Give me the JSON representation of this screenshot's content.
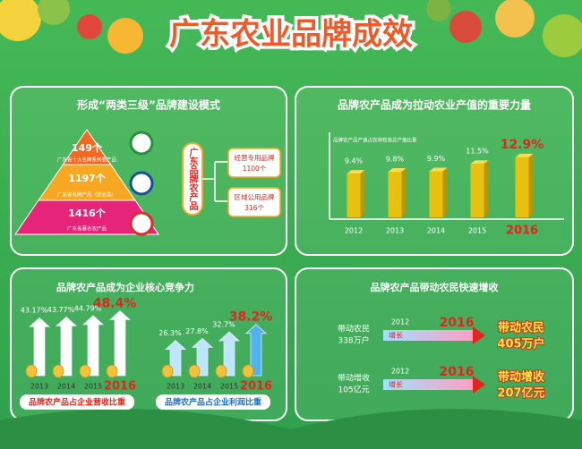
{
  "title": "广东农业品牌成效",
  "panel1": {
    "title": "形成“两类三级”品牌建设模式",
    "pyramid": [
      {
        "value": "149个",
        "label": "广东省十大名牌系列农产品"
      },
      {
        "value": "1197个",
        "label": "广东省名牌产品（农业类）"
      },
      {
        "value": "1416个",
        "label": "广东省著名农产品"
      }
    ],
    "center_label": "广东品牌农产品",
    "branches": [
      {
        "name": "经营专用品牌",
        "value": "1100个"
      },
      {
        "name": "区域公用品牌",
        "value": "316个"
      }
    ]
  },
  "panel3": {
    "title": "品牌农产品成为企业核心竞争力"
  },
  "panel4": {
    "title": "品牌农产品带动农民快速增收",
    "rows": [
      {
        "label": "带动农民",
        "value": "338万户",
        "from": "2012",
        "verb": "增长",
        "to": "2016",
        "result_label": "带动农民",
        "result_value": "405万户"
      },
      {
        "label": "带动增收",
        "value": "105亿元",
        "from": "2012",
        "verb": "增长",
        "to": "2016",
        "result_label": "带动增收",
        "result_value": "207亿元"
      }
    ]
  },
  "chart_data": [
    {
      "type": "bar",
      "title": "品牌农产品成为拉动农业产值的重要力量",
      "subtitle": "品牌农产品产值占农林牧渔总产值比重",
      "categories": [
        "2012",
        "2013",
        "2014",
        "2015",
        "2016"
      ],
      "values": [
        9.4,
        9.8,
        9.9,
        11.5,
        12.9
      ],
      "value_labels": [
        "9.4%",
        "9.8%",
        "9.9%",
        "11.5%",
        "12.9%"
      ],
      "color": "#e8c20f",
      "highlight_color": "#e0261d"
    },
    {
      "type": "arrow",
      "caption": "品牌农产品占企业营收比重",
      "categories": [
        "2013",
        "2014",
        "2015",
        "2016"
      ],
      "values": [
        43.17,
        43.77,
        44.79,
        48.4
      ],
      "value_labels": [
        "43.17%",
        "43.77%",
        "44.79%",
        "48.4%"
      ],
      "color": "#ffffff",
      "highlight_color": "#e0261d",
      "caption_color": "#e0261d"
    },
    {
      "type": "arrow",
      "caption": "品牌农产品占企业利润比重",
      "categories": [
        "2013",
        "2014",
        "2015",
        "2016"
      ],
      "values": [
        26.3,
        27.8,
        32.7,
        38.2
      ],
      "value_labels": [
        "26.3%",
        "27.8%",
        "32.7%",
        "38.2%"
      ],
      "color": "#bfe6ff",
      "highlight_color": "#e0261d",
      "caption_color": "#1a6fc8"
    }
  ]
}
